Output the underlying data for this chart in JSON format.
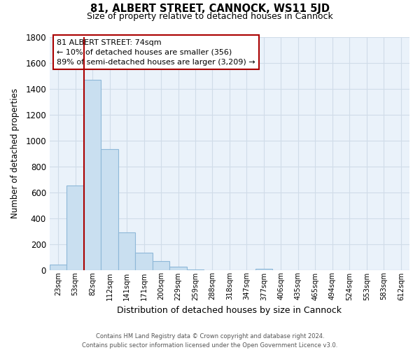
{
  "title": "81, ALBERT STREET, CANNOCK, WS11 5JD",
  "subtitle": "Size of property relative to detached houses in Cannock",
  "xlabel": "Distribution of detached houses by size in Cannock",
  "ylabel": "Number of detached properties",
  "bar_labels": [
    "23sqm",
    "53sqm",
    "82sqm",
    "112sqm",
    "141sqm",
    "171sqm",
    "200sqm",
    "229sqm",
    "259sqm",
    "288sqm",
    "318sqm",
    "347sqm",
    "377sqm",
    "406sqm",
    "435sqm",
    "465sqm",
    "494sqm",
    "524sqm",
    "553sqm",
    "583sqm",
    "612sqm"
  ],
  "bar_values": [
    40,
    650,
    1470,
    935,
    290,
    130,
    65,
    25,
    5,
    0,
    0,
    0,
    10,
    0,
    0,
    0,
    0,
    0,
    0,
    0,
    0
  ],
  "bar_color": "#c9dff0",
  "bar_edge_color": "#8eb8d8",
  "ylim": [
    0,
    1800
  ],
  "yticks": [
    0,
    200,
    400,
    600,
    800,
    1000,
    1200,
    1400,
    1600,
    1800
  ],
  "red_line_bar_index": 2,
  "marker_color": "#aa0000",
  "annotation_title": "81 ALBERT STREET: 74sqm",
  "annotation_line1": "← 10% of detached houses are smaller (356)",
  "annotation_line2": "89% of semi-detached houses are larger (3,209) →",
  "footer1": "Contains HM Land Registry data © Crown copyright and database right 2024.",
  "footer2": "Contains public sector information licensed under the Open Government Licence v3.0.",
  "background_color": "#ffffff",
  "grid_color": "#d0dce8",
  "plot_bg_color": "#eaf2fa"
}
